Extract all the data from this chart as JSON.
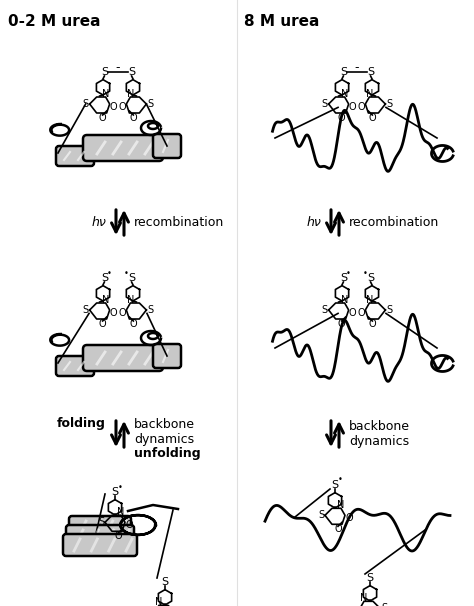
{
  "title_left": "0-2 M urea",
  "title_right": "8 M urea",
  "bg_color": "#ffffff",
  "text_color": "#000000",
  "label_hv": "hν",
  "label_recombination": "recombination",
  "label_backbone_dynamics": "backbone\ndynamics",
  "label_folding": "folding",
  "label_unfolding": "unfolding",
  "title_fontsize": 11,
  "label_fontsize": 9,
  "chem_fontsize": 7,
  "lw_protein": 1.8,
  "lw_chain": 2.0,
  "lw_chem": 1.2,
  "lw_arrow": 2.2,
  "gray_fill": "#c8c8c8",
  "white_fill": "#ffffff"
}
